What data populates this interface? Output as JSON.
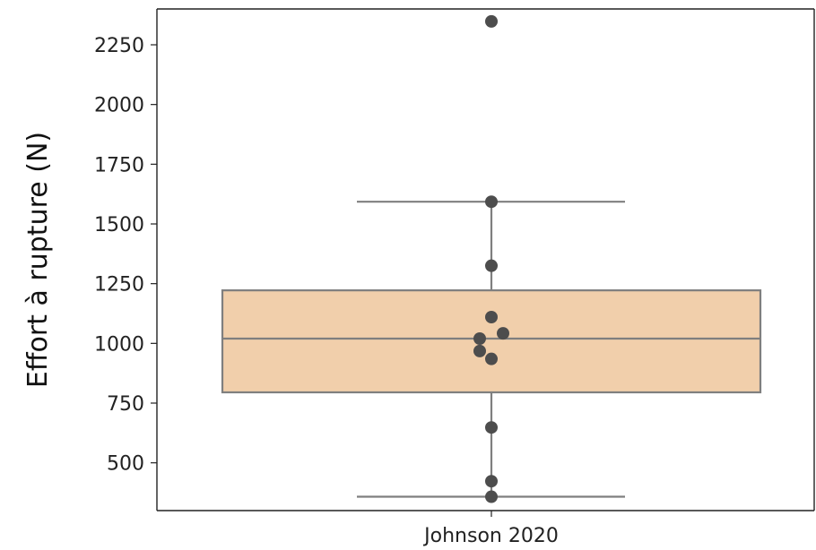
{
  "chart_data": {
    "type": "box",
    "title": "",
    "xlabel": "",
    "ylabel": "Effort à rupture (N)",
    "categories": [
      "Johnson 2020"
    ],
    "ylim": [
      300,
      2400
    ],
    "yticks": [
      500,
      750,
      1000,
      1250,
      1500,
      1750,
      2000,
      2250
    ],
    "box": {
      "whisker_low": 358,
      "q1": 795,
      "median": 1020,
      "q3": 1222,
      "whisker_high": 1593
    },
    "points": [
      2348,
      1593,
      1325,
      1110,
      1042,
      1020,
      968,
      935,
      648,
      423,
      358
    ],
    "colors": {
      "box_fill": "#f1cfab",
      "box_edge": "#7f7f7f",
      "point": "#4d4d4d",
      "axis": "#222222"
    }
  }
}
